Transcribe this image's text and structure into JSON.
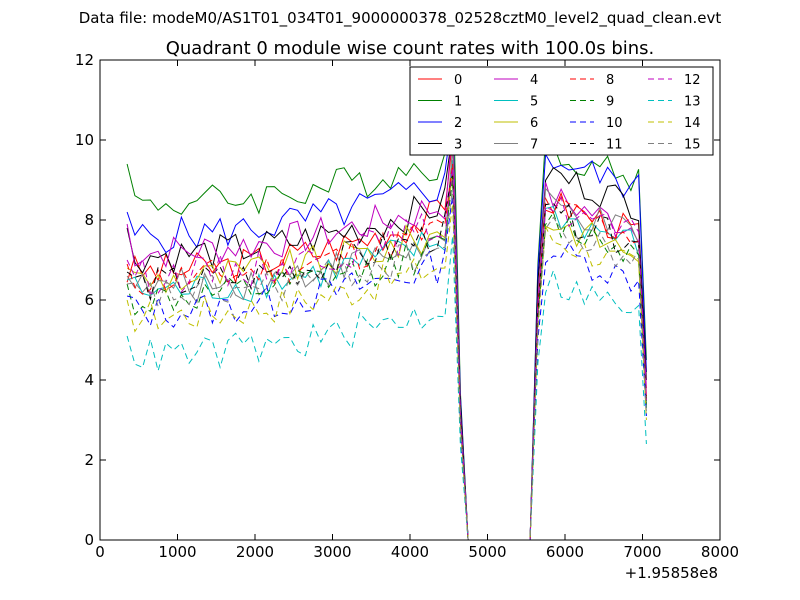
{
  "header_text": "Data file: modeM0/AS1T01_034T01_9000000378_02528cztM0_level2_quad_clean.evt",
  "chart_data": {
    "type": "line",
    "title": "Quadrant 0 module wise count rates with 100.0s bins.",
    "xlabel": "",
    "ylabel": "",
    "x_offset_label": "+1.95858e8",
    "xlim": [
      0,
      8000
    ],
    "ylim": [
      0,
      12
    ],
    "x_ticks": [
      0,
      1000,
      2000,
      3000,
      4000,
      5000,
      6000,
      7000,
      8000
    ],
    "y_ticks": [
      0,
      2,
      4,
      6,
      8,
      10,
      12
    ],
    "grid": false,
    "legend_position": "top-right",
    "legend_columns": 4,
    "x": [
      350,
      450,
      550,
      650,
      750,
      850,
      950,
      1050,
      1150,
      1250,
      1350,
      1450,
      1550,
      1650,
      1750,
      1850,
      1950,
      2050,
      2150,
      2250,
      2350,
      2450,
      2550,
      2650,
      2750,
      2850,
      2950,
      3050,
      3150,
      3250,
      3350,
      3450,
      3550,
      3650,
      3750,
      3850,
      3950,
      4050,
      4150,
      4250,
      4350,
      4450,
      4550,
      4650,
      4750,
      4850,
      4950,
      5050,
      5150,
      5250,
      5350,
      5450,
      5550,
      5650,
      5750,
      5850,
      5950,
      6050,
      6150,
      6250,
      6350,
      6450,
      6550,
      6650,
      6750,
      6850,
      6950,
      7050
    ],
    "series": [
      {
        "name": "0",
        "color": "#ff0000",
        "dash": "solid",
        "base": 6.7,
        "rise": 1.5,
        "post": 7.9,
        "end": 3.6,
        "peak": 10.0
      },
      {
        "name": "1",
        "color": "#008000",
        "dash": "solid",
        "base": 8.4,
        "rise": 1.1,
        "post": 9.2,
        "end": 4.5,
        "peak": 11.8,
        "first": 9.4
      },
      {
        "name": "2",
        "color": "#0000ff",
        "dash": "solid",
        "base": 7.6,
        "rise": 1.3,
        "post": 9.0,
        "end": 4.2,
        "peak": 10.6,
        "first": 8.2
      },
      {
        "name": "3",
        "color": "#000000",
        "dash": "solid",
        "base": 7.1,
        "rise": 1.3,
        "post": 8.6,
        "end": 4.0,
        "peak": 10.2,
        "first": 7.8
      },
      {
        "name": "4",
        "color": "#bf00bf",
        "dash": "solid",
        "base": 7.2,
        "rise": 1.2,
        "post": 8.0,
        "end": 3.8,
        "peak": 10.4,
        "first": 7.9
      },
      {
        "name": "5",
        "color": "#00bfbf",
        "dash": "solid",
        "base": 6.2,
        "rise": 1.3,
        "post": 7.6,
        "end": 3.3,
        "peak": 9.5,
        "first": 6.5
      },
      {
        "name": "6",
        "color": "#bfbf00",
        "dash": "solid",
        "base": 6.5,
        "rise": 1.2,
        "post": 7.4,
        "end": 3.4,
        "peak": 9.2,
        "first": 6.8
      },
      {
        "name": "7",
        "color": "#808080",
        "dash": "solid",
        "base": 6.3,
        "rise": 1.2,
        "post": 7.8,
        "end": 3.4,
        "peak": 9.8,
        "first": 6.6
      },
      {
        "name": "8",
        "color": "#ff0000",
        "dash": "dashed",
        "base": 6.5,
        "rise": 1.3,
        "post": 7.8,
        "end": 3.5,
        "peak": 9.4,
        "first": 6.9
      },
      {
        "name": "9",
        "color": "#008000",
        "dash": "dashed",
        "base": 6.0,
        "rise": 1.3,
        "post": 7.4,
        "end": 3.3,
        "peak": 9.0,
        "first": 6.4
      },
      {
        "name": "10",
        "color": "#0000ff",
        "dash": "dashed",
        "base": 5.7,
        "rise": 1.2,
        "post": 6.7,
        "end": 3.1,
        "peak": 8.6,
        "first": 6.1
      },
      {
        "name": "11",
        "color": "#000000",
        "dash": "dashed",
        "base": 6.4,
        "rise": 1.3,
        "post": 7.6,
        "end": 3.4,
        "peak": 9.2,
        "first": 6.7
      },
      {
        "name": "12",
        "color": "#bf00bf",
        "dash": "dashed",
        "base": 6.6,
        "rise": 1.3,
        "post": 7.8,
        "end": 3.5,
        "peak": 9.3,
        "first": 7.0
      },
      {
        "name": "13",
        "color": "#00bfbf",
        "dash": "dashed",
        "base": 4.6,
        "rise": 1.2,
        "post": 5.9,
        "end": 2.4,
        "peak": 7.6,
        "first": 5.1
      },
      {
        "name": "14",
        "color": "#bfbf00",
        "dash": "dashed",
        "base": 5.6,
        "rise": 1.3,
        "post": 7.0,
        "end": 3.0,
        "peak": 8.4,
        "first": 6.0
      },
      {
        "name": "15",
        "color": "#808080",
        "dash": "dashed",
        "base": 6.1,
        "rise": 1.2,
        "post": 7.2,
        "end": 3.2,
        "peak": 8.8,
        "first": 6.4
      }
    ]
  }
}
